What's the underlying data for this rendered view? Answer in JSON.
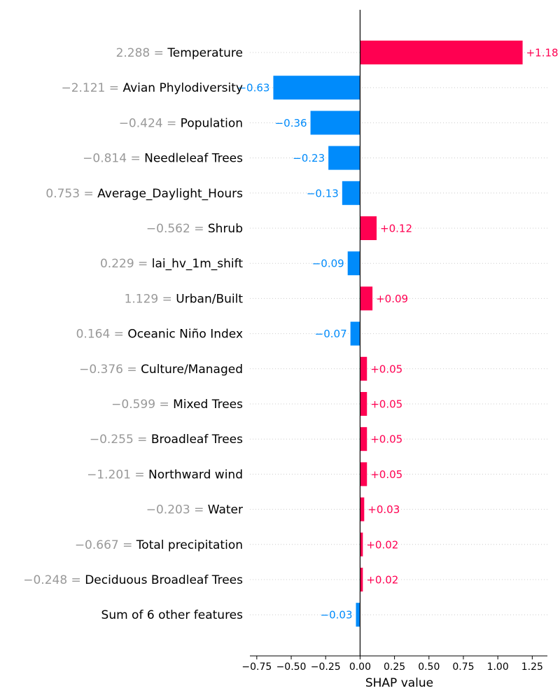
{
  "chart_data": {
    "type": "bar",
    "orientation": "horizontal",
    "xlabel": "SHAP value",
    "xlim": [
      -0.8,
      1.36
    ],
    "xticks": [
      "−0.75",
      "−0.50",
      "−0.25",
      "0.00",
      "0.25",
      "0.50",
      "0.75",
      "1.00",
      "1.25"
    ],
    "xtick_values": [
      -0.75,
      -0.5,
      -0.25,
      0.0,
      0.25,
      0.5,
      0.75,
      1.0,
      1.25
    ],
    "colors": {
      "positive": "#ff0051",
      "negative": "#008bfb",
      "feature_value": "#999999",
      "gridline": "#cccccc"
    },
    "features": [
      {
        "value_text": "2.288",
        "name": "Temperature",
        "shap": 1.18,
        "label": "+1.18"
      },
      {
        "value_text": "−2.121",
        "name": "Avian Phylodiversity",
        "shap": -0.63,
        "label": "−0.63"
      },
      {
        "value_text": "−0.424",
        "name": "Population",
        "shap": -0.36,
        "label": "−0.36"
      },
      {
        "value_text": "−0.814",
        "name": "Needleleaf Trees",
        "shap": -0.23,
        "label": "−0.23"
      },
      {
        "value_text": "0.753",
        "name": "Average_Daylight_Hours",
        "shap": -0.13,
        "label": "−0.13"
      },
      {
        "value_text": "−0.562",
        "name": "Shrub",
        "shap": 0.12,
        "label": "+0.12"
      },
      {
        "value_text": "0.229",
        "name": "lai_hv_1m_shift",
        "shap": -0.09,
        "label": "−0.09"
      },
      {
        "value_text": "1.129",
        "name": "Urban/Built",
        "shap": 0.09,
        "label": "+0.09"
      },
      {
        "value_text": "0.164",
        "name": "Oceanic Niño Index",
        "shap": -0.07,
        "label": "−0.07"
      },
      {
        "value_text": "−0.376",
        "name": "Culture/Managed",
        "shap": 0.05,
        "label": "+0.05"
      },
      {
        "value_text": "−0.599",
        "name": "Mixed Trees",
        "shap": 0.05,
        "label": "+0.05"
      },
      {
        "value_text": "−0.255",
        "name": "Broadleaf Trees",
        "shap": 0.05,
        "label": "+0.05"
      },
      {
        "value_text": "−1.201",
        "name": "Northward wind",
        "shap": 0.05,
        "label": "+0.05"
      },
      {
        "value_text": "−0.203",
        "name": "Water",
        "shap": 0.03,
        "label": "+0.03"
      },
      {
        "value_text": "−0.667",
        "name": "Total precipitation",
        "shap": 0.02,
        "label": "+0.02"
      },
      {
        "value_text": "−0.248",
        "name": "Deciduous Broadleaf Trees",
        "shap": 0.02,
        "label": "+0.02"
      },
      {
        "value_text": "",
        "name": "Sum of 6 other features",
        "shap": -0.03,
        "label": "−0.03"
      }
    ]
  }
}
